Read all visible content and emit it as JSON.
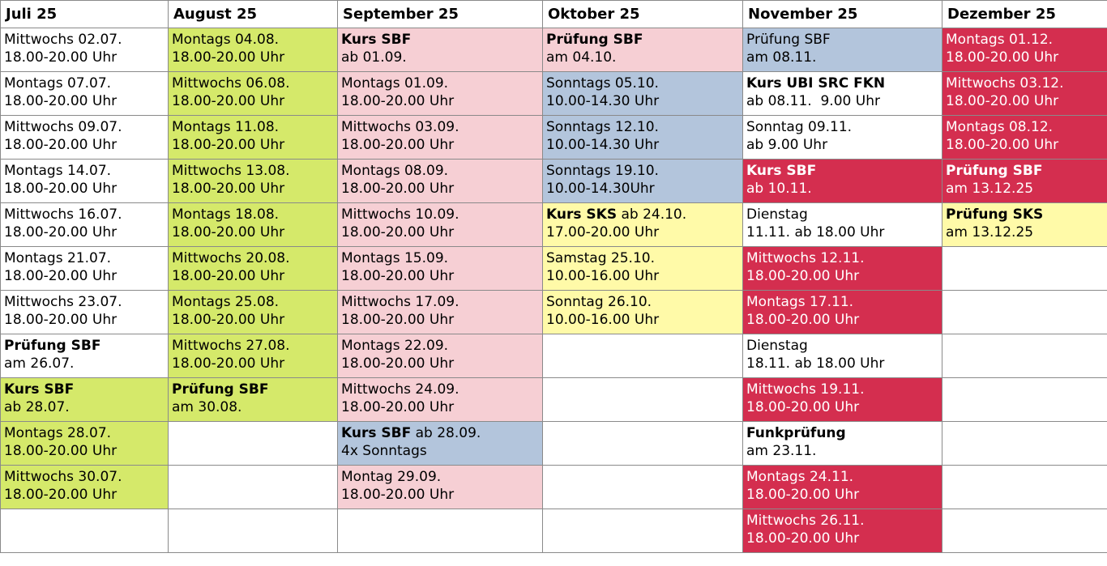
{
  "columns": [
    "Juli 25",
    "August 25",
    "September 25",
    "Oktober 25",
    "November 25",
    "Dezember 25"
  ],
  "colors": {
    "green": "#d5e96a",
    "pink": "#f6cfd4",
    "blue": "#b3c5dc",
    "yellow": "#fffaa8",
    "red": "#d42e4f",
    "white": "#ffffff"
  },
  "rows": [
    [
      {
        "bold": "",
        "text": "Mittwochs 02.07.",
        "line2": "18.00-20.00 Uhr",
        "color": "white"
      },
      {
        "bold": "",
        "text": "Montags 04.08.",
        "line2": "18.00-20.00 Uhr",
        "color": "green"
      },
      {
        "bold": "Kurs SBF",
        "text": "",
        "line2": "ab 01.09.",
        "color": "pink"
      },
      {
        "bold": "Prüfung SBF",
        "text": "",
        "line2": "am 04.10.",
        "color": "pink"
      },
      {
        "bold": "",
        "text": "Prüfung SBF",
        "line2": "am 08.11.",
        "color": "blue"
      },
      {
        "bold": "",
        "text": "Montags 01.12.",
        "line2": "18.00-20.00 Uhr",
        "color": "red"
      }
    ],
    [
      {
        "bold": "",
        "text": "Montags 07.07.",
        "line2": "18.00-20.00 Uhr",
        "color": "white"
      },
      {
        "bold": "",
        "text": "Mittwochs 06.08.",
        "line2": "18.00-20.00 Uhr",
        "color": "green"
      },
      {
        "bold": "",
        "text": "Montags 01.09.",
        "line2": "18.00-20.00 Uhr",
        "color": "pink"
      },
      {
        "bold": "",
        "text": "Sonntags 05.10.",
        "line2": "10.00-14.30 Uhr",
        "color": "blue"
      },
      {
        "bold": "Kurs UBI SRC FKN",
        "text": "",
        "line2": "ab 08.11.  9.00 Uhr",
        "color": "white"
      },
      {
        "bold": "",
        "text": "Mittwochs 03.12.",
        "line2": "18.00-20.00 Uhr",
        "color": "red"
      }
    ],
    [
      {
        "bold": "",
        "text": "Mittwochs 09.07.",
        "line2": "18.00-20.00 Uhr",
        "color": "white"
      },
      {
        "bold": "",
        "text": "Montags 11.08.",
        "line2": "18.00-20.00 Uhr",
        "color": "green"
      },
      {
        "bold": "",
        "text": "Mittwochs 03.09.",
        "line2": "18.00-20.00 Uhr",
        "color": "pink"
      },
      {
        "bold": "",
        "text": "Sonntags 12.10.",
        "line2": "10.00-14.30 Uhr",
        "color": "blue"
      },
      {
        "bold": "",
        "text": "Sonntag 09.11.",
        "line2": "ab 9.00 Uhr",
        "color": "white"
      },
      {
        "bold": "",
        "text": "Montags 08.12.",
        "line2": "18.00-20.00 Uhr",
        "color": "red"
      }
    ],
    [
      {
        "bold": "",
        "text": "Montags 14.07.",
        "line2": "18.00-20.00 Uhr",
        "color": "white"
      },
      {
        "bold": "",
        "text": "Mittwochs 13.08.",
        "line2": "18.00-20.00 Uhr",
        "color": "green"
      },
      {
        "bold": "",
        "text": "Montags 08.09.",
        "line2": "18.00-20.00 Uhr",
        "color": "pink"
      },
      {
        "bold": "",
        "text": "Sonntags 19.10.",
        "line2": "10.00-14.30Uhr",
        "color": "blue"
      },
      {
        "bold": "Kurs SBF",
        "text": "",
        "line2": "ab 10.11.",
        "color": "red"
      },
      {
        "bold": "Prüfung SBF",
        "text": "",
        "line2": "am 13.12.25",
        "color": "red"
      }
    ],
    [
      {
        "bold": "",
        "text": "Mittwochs 16.07.",
        "line2": "18.00-20.00 Uhr",
        "color": "white"
      },
      {
        "bold": "",
        "text": "Montags 18.08.",
        "line2": "18.00-20.00 Uhr",
        "color": "green"
      },
      {
        "bold": "",
        "text": "Mittwochs 10.09.",
        "line2": "18.00-20.00 Uhr",
        "color": "pink"
      },
      {
        "bold": "Kurs SKS",
        "text": " ab 24.10.",
        "line2": "17.00-20.00 Uhr",
        "color": "yellow"
      },
      {
        "bold": "",
        "text": "Dienstag",
        "line2": "11.11. ab 18.00 Uhr",
        "color": "white"
      },
      {
        "bold": "Prüfung SKS",
        "text": "",
        "line2": "am 13.12.25",
        "color": "yellow"
      }
    ],
    [
      {
        "bold": "",
        "text": "Montags 21.07.",
        "line2": "18.00-20.00 Uhr",
        "color": "white"
      },
      {
        "bold": "",
        "text": "Mittwochs 20.08.",
        "line2": "18.00-20.00 Uhr",
        "color": "green"
      },
      {
        "bold": "",
        "text": "Montags 15.09.",
        "line2": "18.00-20.00 Uhr",
        "color": "pink"
      },
      {
        "bold": "",
        "text": "Samstag 25.10.",
        "line2": "10.00-16.00 Uhr",
        "color": "yellow"
      },
      {
        "bold": "",
        "text": "Mittwochs 12.11.",
        "line2": "18.00-20.00 Uhr",
        "color": "red"
      },
      {
        "bold": "",
        "text": "",
        "line2": "",
        "color": "white"
      }
    ],
    [
      {
        "bold": "",
        "text": "Mittwochs 23.07.",
        "line2": "18.00-20.00 Uhr",
        "color": "white"
      },
      {
        "bold": "",
        "text": "Montags 25.08.",
        "line2": "18.00-20.00 Uhr",
        "color": "green"
      },
      {
        "bold": "",
        "text": "Mittwochs 17.09.",
        "line2": "18.00-20.00 Uhr",
        "color": "pink"
      },
      {
        "bold": "",
        "text": "Sonntag 26.10.",
        "line2": "10.00-16.00 Uhr",
        "color": "yellow"
      },
      {
        "bold": "",
        "text": "Montags 17.11.",
        "line2": "18.00-20.00 Uhr",
        "color": "red"
      },
      {
        "bold": "",
        "text": "",
        "line2": "",
        "color": "white"
      }
    ],
    [
      {
        "bold": "Prüfung SBF",
        "text": "",
        "line2": "am 26.07.",
        "color": "white"
      },
      {
        "bold": "",
        "text": "Mittwochs 27.08.",
        "line2": "18.00-20.00 Uhr",
        "color": "green"
      },
      {
        "bold": "",
        "text": "Montags 22.09.",
        "line2": "18.00-20.00 Uhr",
        "color": "pink"
      },
      {
        "bold": "",
        "text": "",
        "line2": "",
        "color": "white"
      },
      {
        "bold": "",
        "text": "Dienstag",
        "line2": "18.11. ab 18.00 Uhr",
        "color": "white"
      },
      {
        "bold": "",
        "text": "",
        "line2": "",
        "color": "white"
      }
    ],
    [
      {
        "bold": "Kurs SBF",
        "text": "",
        "line2": "ab 28.07.",
        "color": "green"
      },
      {
        "bold": "Prüfung SBF",
        "text": "",
        "line2": "am 30.08.",
        "color": "green"
      },
      {
        "bold": "",
        "text": "Mittwochs 24.09.",
        "line2": "18.00-20.00 Uhr",
        "color": "pink"
      },
      {
        "bold": "",
        "text": "",
        "line2": "",
        "color": "white"
      },
      {
        "bold": "",
        "text": "Mittwochs 19.11.",
        "line2": "18.00-20.00 Uhr",
        "color": "red"
      },
      {
        "bold": "",
        "text": "",
        "line2": "",
        "color": "white"
      }
    ],
    [
      {
        "bold": "",
        "text": "Montags 28.07.",
        "line2": "18.00-20.00 Uhr",
        "color": "green"
      },
      {
        "bold": "",
        "text": "",
        "line2": "",
        "color": "white"
      },
      {
        "bold": "Kurs SBF",
        "text": " ab 28.09.",
        "line2": "4x Sonntags",
        "color": "blue"
      },
      {
        "bold": "",
        "text": "",
        "line2": "",
        "color": "white"
      },
      {
        "bold": "Funkprüfung",
        "text": "",
        "line2": "am 23.11.",
        "color": "white"
      },
      {
        "bold": "",
        "text": "",
        "line2": "",
        "color": "white"
      }
    ],
    [
      {
        "bold": "",
        "text": "Mittwochs 30.07.",
        "line2": "18.00-20.00 Uhr",
        "color": "green"
      },
      {
        "bold": "",
        "text": "",
        "line2": "",
        "color": "white"
      },
      {
        "bold": "",
        "text": "Montag 29.09.",
        "line2": "18.00-20.00 Uhr",
        "color": "pink"
      },
      {
        "bold": "",
        "text": "",
        "line2": "",
        "color": "white"
      },
      {
        "bold": "",
        "text": "Montags 24.11.",
        "line2": "18.00-20.00 Uhr",
        "color": "red"
      },
      {
        "bold": "",
        "text": "",
        "line2": "",
        "color": "white"
      }
    ],
    [
      {
        "bold": "",
        "text": "",
        "line2": "",
        "color": "white"
      },
      {
        "bold": "",
        "text": "",
        "line2": "",
        "color": "white"
      },
      {
        "bold": "",
        "text": "",
        "line2": "",
        "color": "white"
      },
      {
        "bold": "",
        "text": "",
        "line2": "",
        "color": "white"
      },
      {
        "bold": "",
        "text": "Mittwochs 26.11.",
        "line2": "18.00-20.00 Uhr",
        "color": "red"
      },
      {
        "bold": "",
        "text": "",
        "line2": "",
        "color": "white"
      }
    ]
  ]
}
